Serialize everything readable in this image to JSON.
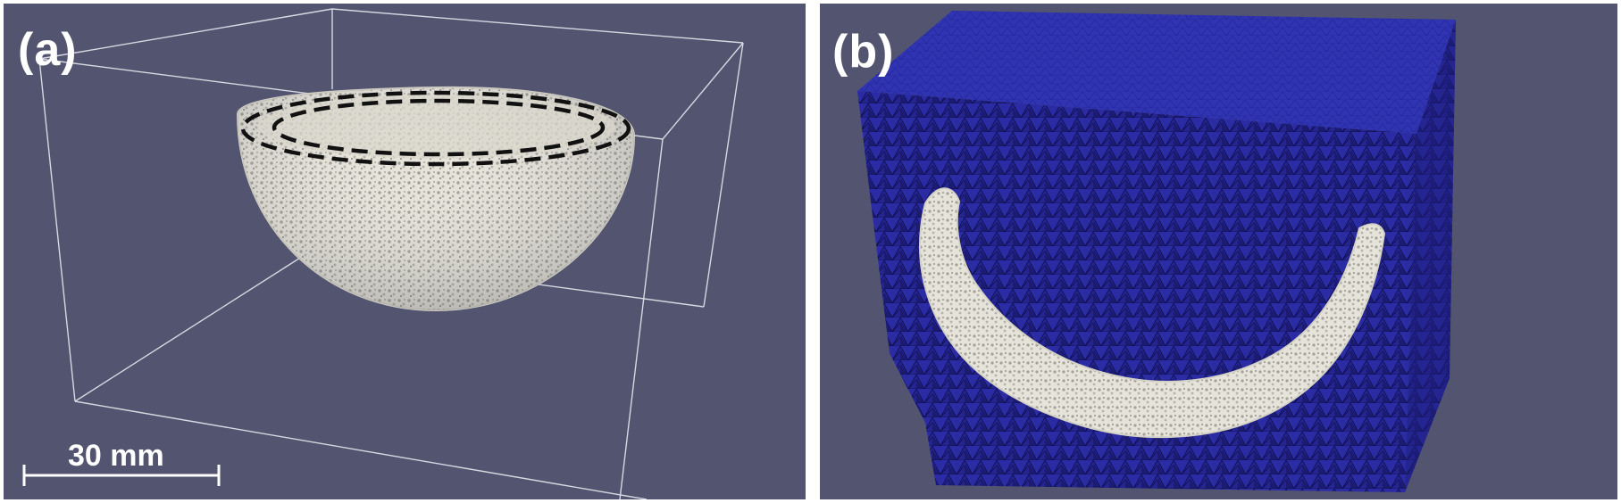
{
  "panel_a": {
    "label": "(a)",
    "scale_bar_label": "30 mm"
  },
  "panel_b": {
    "label": "(b)"
  },
  "colors": {
    "background": "#525470",
    "implant": "#e3e1d6",
    "mesh": "#23238f",
    "mesh_top": "#2f33b2",
    "bounding_box": "#d8d8e2",
    "marker": "#111111"
  }
}
